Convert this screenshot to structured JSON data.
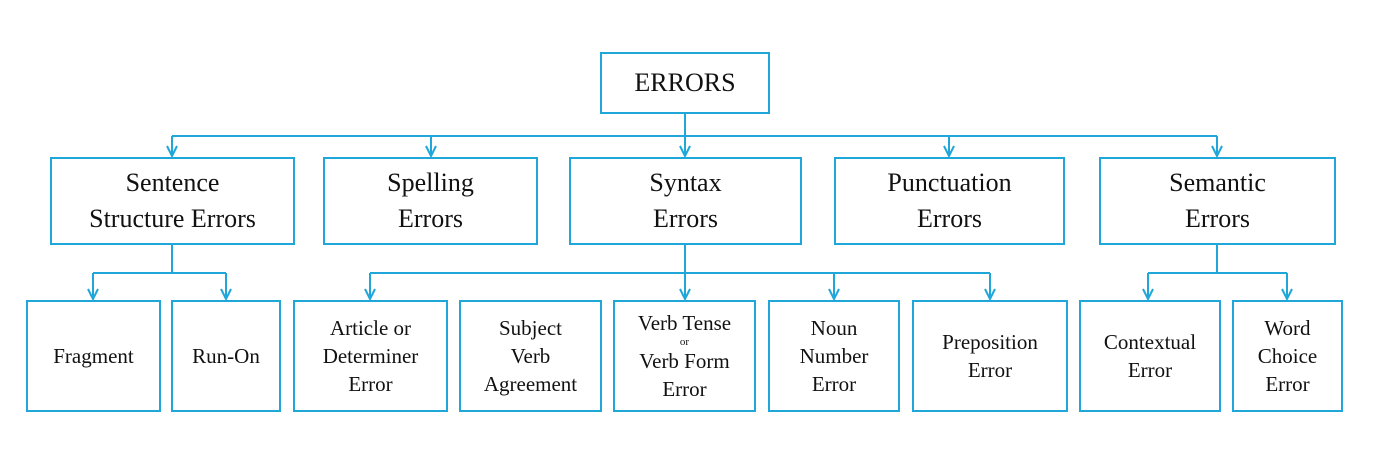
{
  "root": {
    "label": "ERRORS"
  },
  "categories": [
    {
      "lines": [
        "Sentence",
        "Structure Errors"
      ]
    },
    {
      "lines": [
        "Spelling",
        "Errors"
      ]
    },
    {
      "lines": [
        "Syntax",
        "Errors"
      ]
    },
    {
      "lines": [
        "Punctuation",
        "Errors"
      ]
    },
    {
      "lines": [
        "Semantic",
        "Errors"
      ]
    }
  ],
  "subtypes": {
    "sentence_structure": [
      {
        "lines": [
          "Fragment"
        ]
      },
      {
        "lines": [
          "Run-On"
        ]
      }
    ],
    "syntax": [
      {
        "lines": [
          "Article or",
          "Determiner",
          "Error"
        ]
      },
      {
        "lines": [
          "Subject",
          "Verb",
          "Agreement"
        ]
      },
      {
        "lines": [
          "Verb Tense",
          "or",
          "Verb Form",
          "Error"
        ]
      },
      {
        "lines": [
          "Noun",
          "Number",
          "Error"
        ]
      },
      {
        "lines": [
          "Preposition",
          "Error"
        ]
      }
    ],
    "semantic": [
      {
        "lines": [
          "Contextual",
          "Error"
        ]
      },
      {
        "lines": [
          "Word",
          "Choice",
          "Error"
        ]
      }
    ]
  },
  "colors": {
    "border": "#1ea7d8",
    "text": "#111111"
  }
}
